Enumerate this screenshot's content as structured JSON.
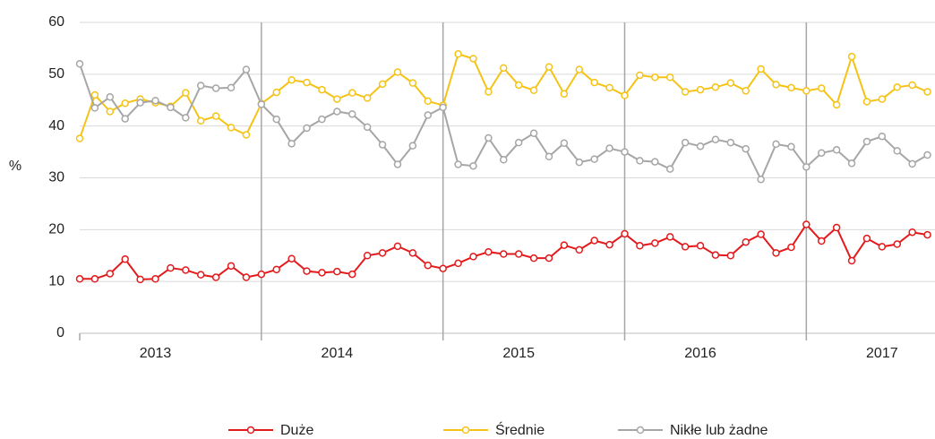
{
  "chart_data": {
    "type": "line",
    "y_label": "%",
    "ylim": [
      0,
      60
    ],
    "yticks": [
      0,
      10,
      20,
      30,
      40,
      50,
      60
    ],
    "grid": true,
    "x_groups": [
      "2013",
      "2014",
      "2015",
      "2016",
      "2017"
    ],
    "categories": [
      null,
      null,
      null,
      null,
      null,
      null,
      null,
      null,
      null,
      null,
      null,
      null,
      null,
      null,
      null,
      null,
      null,
      null,
      null,
      null,
      null,
      null,
      null,
      null,
      null,
      null,
      null,
      null,
      null,
      null,
      null,
      null,
      null,
      null,
      null,
      null,
      null,
      null,
      null,
      null,
      null,
      null,
      null,
      null,
      null,
      null,
      null,
      null,
      null,
      null,
      null,
      null,
      null,
      null,
      null,
      null,
      null
    ],
    "legend": "bottom",
    "series": [
      {
        "name": "Duże",
        "color": "#e31a1c",
        "values": [
          10.5,
          10.5,
          11.5,
          14.3,
          10.4,
          10.5,
          12.6,
          12.2,
          11.3,
          10.8,
          13,
          10.8,
          11.4,
          12.3,
          14.4,
          12,
          11.7,
          11.9,
          11.4,
          15,
          15.5,
          16.8,
          15.5,
          13.1,
          12.5,
          13.5,
          14.8,
          15.7,
          15.3,
          15.3,
          14.5,
          14.5,
          17,
          16.1,
          17.9,
          17.1,
          19.2,
          16.9,
          17.4,
          18.6,
          16.7,
          16.9,
          15.1,
          15,
          17.6,
          19.1,
          15.5,
          16.6,
          21,
          17.8,
          20.4,
          14,
          18.3,
          16.7,
          17.2,
          19.5,
          19
        ]
      },
      {
        "name": "Średnie",
        "color": "#f5c316",
        "values": [
          37.6,
          46,
          42.8,
          44.4,
          45.2,
          44.5,
          43.8,
          46.4,
          41,
          41.9,
          39.7,
          38.3,
          44.3,
          46.5,
          48.9,
          48.4,
          47,
          45.2,
          46.4,
          45.4,
          48.1,
          50.4,
          48.3,
          44.8,
          44,
          53.9,
          53,
          46.6,
          51.2,
          47.9,
          46.9,
          51.4,
          46.2,
          50.9,
          48.4,
          47.4,
          45.9,
          49.8,
          49.4,
          49.4,
          46.6,
          47,
          47.5,
          48.3,
          46.8,
          51,
          48,
          47.4,
          46.8,
          47.3,
          44.1,
          53.4,
          44.7,
          45.2,
          47.5,
          47.9,
          46.6
        ]
      },
      {
        "name": "Nikłe lub żadne",
        "color": "#a6a6a6",
        "values": [
          52,
          43.5,
          45.6,
          41.4,
          44.5,
          44.9,
          43.6,
          41.6,
          47.8,
          47.3,
          47.4,
          50.9,
          44.2,
          41.3,
          36.6,
          39.6,
          41.3,
          42.8,
          42.3,
          39.8,
          36.4,
          32.6,
          36.2,
          42.1,
          43.6,
          32.6,
          32.3,
          37.7,
          33.5,
          36.8,
          38.6,
          34.1,
          36.7,
          33,
          33.6,
          35.7,
          35,
          33.3,
          33.1,
          31.7,
          36.8,
          36.1,
          37.4,
          36.8,
          35.6,
          29.7,
          36.5,
          36,
          32.1,
          34.8,
          35.4,
          32.8,
          37,
          38,
          35.2,
          32.7,
          34.4
        ]
      }
    ]
  }
}
